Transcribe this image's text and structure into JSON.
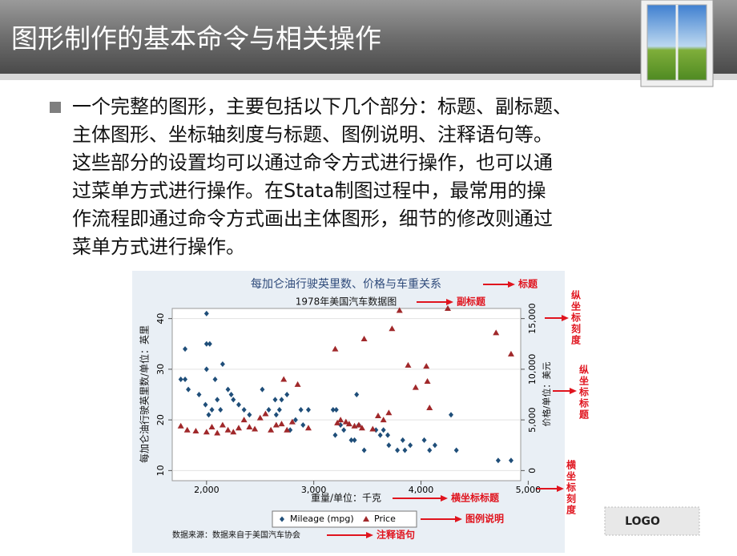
{
  "header": {
    "title": "图形制作的基本命令与相关操作"
  },
  "body": {
    "lines": [
      "一个完整的图形，主要包括以下几个部分：标题、副标题、",
      "主体图形、坐标轴刻度与标题、图例说明、注释语句等。",
      "这些部分的设置均可以通过命令方式进行操作，也可以通",
      "过菜单方式进行操作。在Stata制图过程中，最常用的操",
      "作流程即通过命令方式画出主体图形，细节的修改则通过",
      "菜单方式进行操作。"
    ]
  },
  "logo": "LOGO",
  "chart_data": {
    "type": "scatter",
    "title": "每加仑油行驶英里数、价格与车重关系",
    "subtitle": "1978年美国汽车数据图",
    "x_label": "重量/单位：千克",
    "y_label": "每加仑油行驶英里数/单位：英里",
    "y2_label": "价格/单位：美元",
    "note": "数据来源：数据来自于美国汽车协会",
    "xlim": [
      1680,
      4930
    ],
    "ylim": [
      8,
      42
    ],
    "y2lim": [
      -1000,
      16000
    ],
    "xticks": [
      {
        "value": 2000,
        "label": "2,000"
      },
      {
        "value": 3000,
        "label": "3,000"
      },
      {
        "value": 4000,
        "label": "4,000"
      },
      {
        "value": 5000,
        "label": "5,000"
      }
    ],
    "yticks": [
      10,
      20,
      30,
      40
    ],
    "y2ticks": [
      0,
      {
        "value": 5000,
        "label": "5,000"
      },
      {
        "value": 10000,
        "label": "10,000"
      },
      {
        "value": 15000,
        "label": "15,000"
      }
    ],
    "grid": true,
    "series": [
      {
        "name": "Mileage (mpg)",
        "color": "#1f4e79",
        "marker": "diamond",
        "x": [
          1800,
          1760,
          1800,
          2000,
          2000,
          2030,
          1830,
          1930,
          2000,
          2080,
          2100,
          2150,
          2200,
          2230,
          2250,
          2050,
          2020,
          1990,
          2130,
          2300,
          2350,
          2400,
          2520,
          2580,
          2640,
          2680,
          2650,
          2700,
          2750,
          2780,
          2830,
          2880,
          2900,
          2950,
          3180,
          3210,
          3200,
          3250,
          3280,
          3350,
          3420,
          3400,
          3380,
          3470,
          3580,
          3620,
          3650,
          3700,
          3690,
          3780,
          3850,
          3830,
          3900,
          4030,
          4080,
          4130,
          4280,
          4330,
          4720,
          4840
        ],
        "values": [
          28,
          28,
          34,
          41,
          35,
          35,
          26,
          25,
          30,
          28,
          24,
          31,
          26,
          25,
          24,
          22,
          21,
          23,
          22,
          23,
          22,
          21,
          26,
          22,
          24,
          22,
          21,
          24,
          25,
          18,
          20,
          22,
          19,
          22,
          22,
          22,
          17,
          19,
          18,
          16,
          19,
          25,
          16,
          14,
          18,
          17,
          18,
          15,
          17,
          14,
          14,
          16,
          15,
          16,
          14,
          15,
          21,
          14,
          12,
          12
        ]
      },
      {
        "name": "Price",
        "color": "#a0282a",
        "marker": "triangle",
        "axis": "y2",
        "x": [
          1760,
          1820,
          1900,
          2000,
          2050,
          2100,
          2150,
          2200,
          2250,
          2300,
          2350,
          2400,
          2450,
          2500,
          2550,
          2600,
          2650,
          2700,
          2720,
          2750,
          2800,
          2850,
          2950,
          3200,
          3220,
          3250,
          3300,
          3330,
          3380,
          3420,
          3450,
          3470,
          3550,
          3600,
          3650,
          3700,
          3730,
          3800,
          3880,
          3950,
          4050,
          4060,
          4080,
          4250,
          4700,
          4840
        ],
        "values": [
          4400,
          4000,
          3900,
          3800,
          4300,
          3700,
          4500,
          4000,
          3800,
          4200,
          5000,
          4300,
          4100,
          5200,
          5600,
          4000,
          4500,
          4600,
          9000,
          4000,
          4800,
          8500,
          4200,
          12000,
          4700,
          5000,
          4800,
          4600,
          4400,
          4500,
          4200,
          13000,
          4100,
          5400,
          5000,
          5700,
          14000,
          15800,
          10400,
          8200,
          10300,
          8800,
          6200,
          16000,
          13600,
          11500
        ]
      }
    ],
    "annotations": [
      "标题",
      "副标题",
      "纵坐标刻度",
      "纵坐标标题",
      "横坐标刻度",
      "横坐标标题",
      "图例说明",
      "注释语句"
    ]
  }
}
